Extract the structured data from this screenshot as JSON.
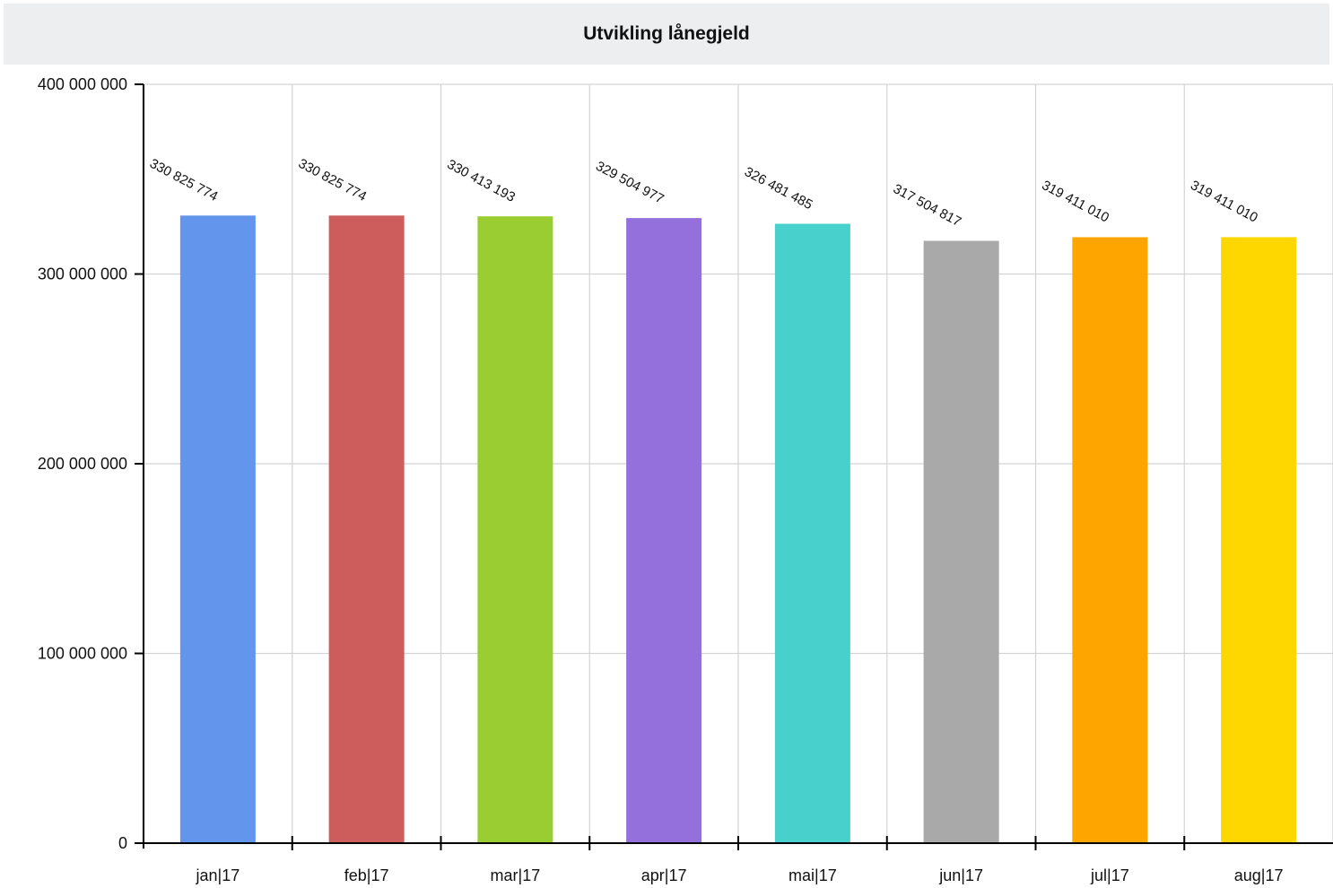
{
  "chart_data": {
    "type": "bar",
    "title": "Utvikling lånegjeld",
    "xlabel": "",
    "ylabel": "",
    "categories": [
      "jan|17",
      "feb|17",
      "mar|17",
      "apr|17",
      "mai|17",
      "jun|17",
      "jul|17",
      "aug|17"
    ],
    "values": [
      330825774,
      330825774,
      330413193,
      329504977,
      326481485,
      317504817,
      319411010,
      319411010
    ],
    "value_labels": [
      "330 825 774",
      "330 825 774",
      "330 413 193",
      "329 504 977",
      "326 481 485",
      "317 504 817",
      "319 411 010",
      "319 411 010"
    ],
    "colors": [
      "#6495ed",
      "#cd5c5c",
      "#9acd32",
      "#9370db",
      "#48d1cc",
      "#a9a9a9",
      "#ffa500",
      "#ffd700"
    ],
    "ylim": [
      0,
      400000000
    ],
    "yticks": [
      0,
      100000000,
      200000000,
      300000000,
      400000000
    ],
    "ytick_labels": [
      "0",
      "100 000 000",
      "200 000 000",
      "300 000 000",
      "400 000 000"
    ],
    "grid": true,
    "legend": "none"
  }
}
